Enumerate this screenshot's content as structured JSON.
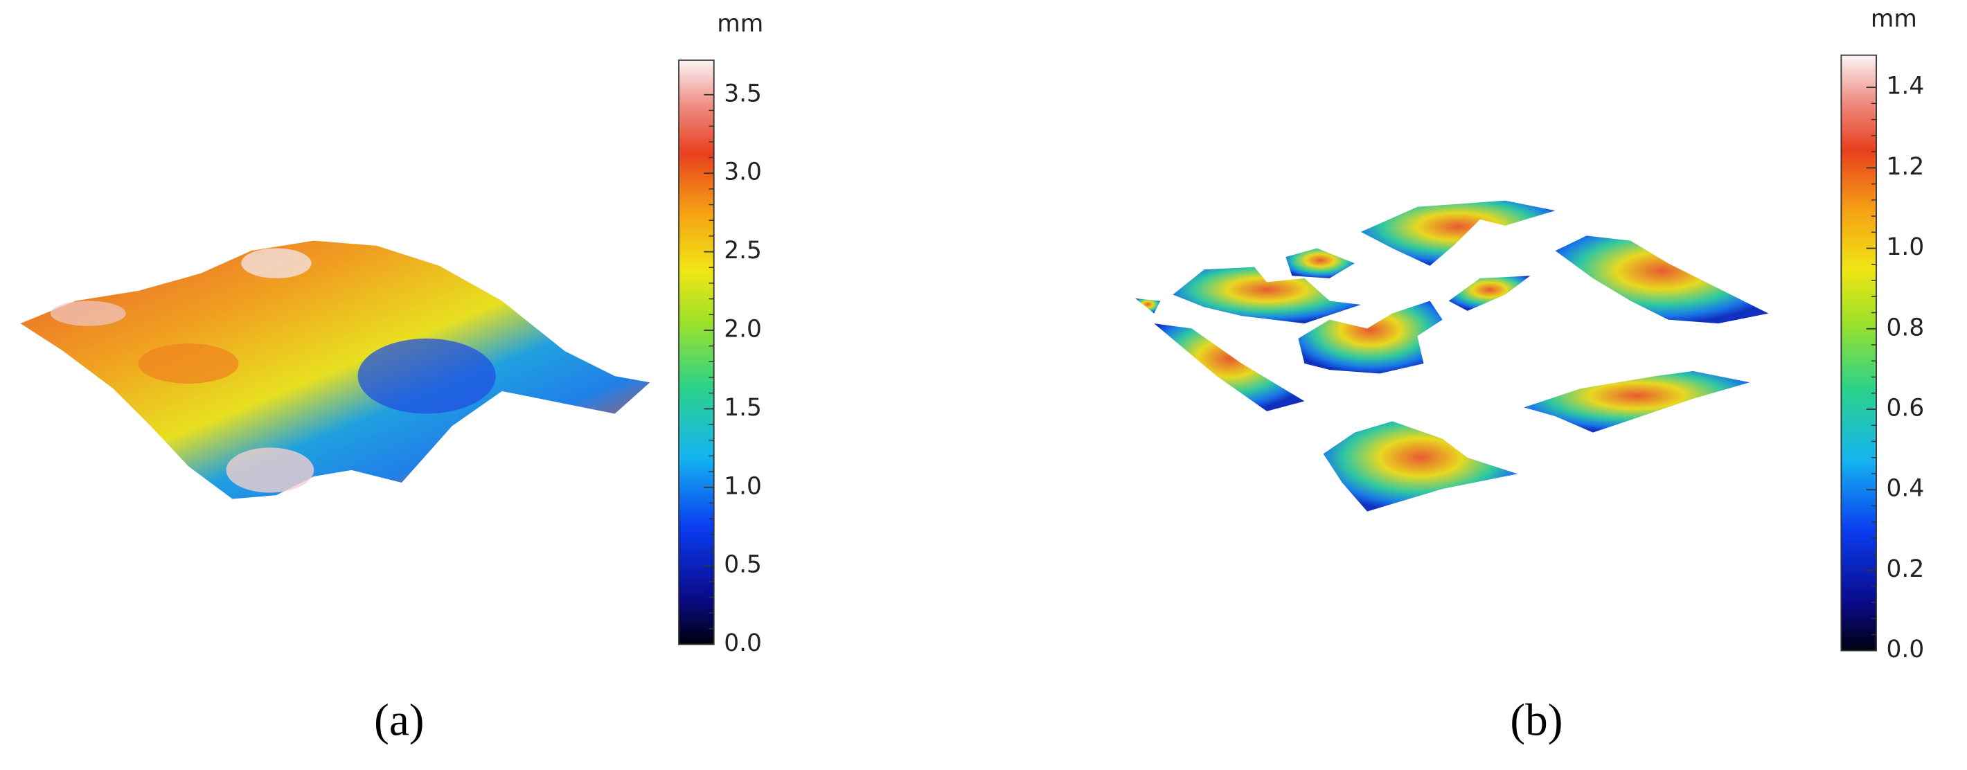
{
  "chart_data": [
    {
      "type": "colorbar",
      "unit": "mm",
      "caption": "(a)",
      "ylim": [
        0,
        3.72
      ],
      "yticks": [
        {
          "value": 0,
          "label": "0.0"
        },
        0.5,
        {
          "value": 1,
          "label": "1.0"
        },
        1.5,
        {
          "value": 2,
          "label": "2.0"
        },
        2.5,
        {
          "value": 3,
          "label": "3.0"
        },
        3.5
      ]
    },
    {
      "type": "colorbar",
      "unit": "mm",
      "caption": "(b)",
      "ylim": [
        0,
        1.48
      ],
      "yticks": [
        {
          "value": 0,
          "label": "0.0"
        },
        0.2,
        0.4,
        0.6,
        0.8,
        {
          "value": 1,
          "label": "1.0"
        },
        1.2,
        1.4
      ]
    }
  ]
}
